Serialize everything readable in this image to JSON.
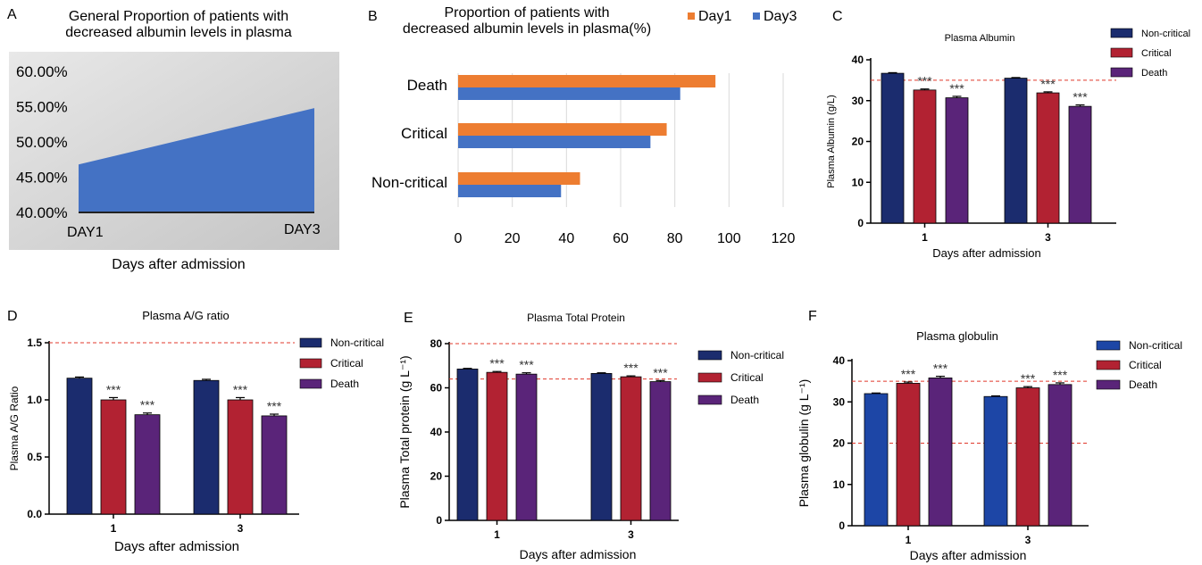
{
  "chart_data": [
    {
      "id": "A",
      "panel_label": "A",
      "type": "area",
      "title_line1": "General Proportion of patients with",
      "title_line2": "decreased albumin levels in plasma",
      "xlabel": "Days after admission",
      "categories": [
        "DAY1",
        "DAY3"
      ],
      "values": [
        0.468,
        0.548
      ],
      "ylim": [
        0.4,
        0.6
      ],
      "yticks": [
        "60.00%",
        "55.00%",
        "50.00%",
        "45.00%",
        "40.00%"
      ],
      "ytick_values": [
        0.6,
        0.55,
        0.5,
        0.45,
        0.4
      ],
      "colors": {
        "area": "#4472c4",
        "bg": "#d6d6d6"
      }
    },
    {
      "id": "B",
      "panel_label": "B",
      "type": "bar",
      "orientation": "horizontal",
      "title_line1": "Proportion of patients with",
      "title_line2": "decreased albumin levels in plasma(%)",
      "categories": [
        "Death",
        "Critical",
        "Non-critical"
      ],
      "series": [
        {
          "name": "Day1",
          "values": [
            95,
            77,
            45
          ],
          "color": "#ed7d31"
        },
        {
          "name": "Day3",
          "values": [
            82,
            71,
            38
          ],
          "color": "#4472c4"
        }
      ],
      "xlim": [
        0,
        120
      ],
      "xticks": [
        "0",
        "20",
        "40",
        "60",
        "80",
        "100",
        "120"
      ],
      "grid": true,
      "legend": "top-right"
    },
    {
      "id": "C",
      "panel_label": "C",
      "type": "bar",
      "title": "Plasma Albumin",
      "xlabel": "Days after admission",
      "ylabel": "Plasma Albumin (g/L)",
      "categories": [
        "1",
        "3"
      ],
      "series": [
        {
          "name": "Non-critical",
          "values": [
            36.7,
            35.5
          ],
          "err": [
            0.15,
            0.15
          ],
          "sig": [
            "",
            ""
          ],
          "color": "#1b2c6e"
        },
        {
          "name": "Critical",
          "values": [
            32.6,
            31.9
          ],
          "err": [
            0.25,
            0.25
          ],
          "sig": [
            "***",
            "***"
          ],
          "color": "#b22232"
        },
        {
          "name": "Death",
          "values": [
            30.7,
            28.6
          ],
          "err": [
            0.35,
            0.35
          ],
          "sig": [
            "***",
            "***"
          ],
          "color": "#5a2479"
        }
      ],
      "ylim": [
        0,
        40
      ],
      "yticks": [
        "0",
        "10",
        "20",
        "30",
        "40"
      ],
      "ytick_values": [
        0,
        10,
        20,
        30,
        40
      ],
      "ref_lines": [
        35
      ],
      "legend": "top-right"
    },
    {
      "id": "D",
      "panel_label": "D",
      "type": "bar",
      "title": "Plasma A/G ratio",
      "xlabel": "Days after admission",
      "ylabel": "Plasma A/G Ratio",
      "categories": [
        "1",
        "3"
      ],
      "series": [
        {
          "name": "Non-critical",
          "values": [
            1.19,
            1.17
          ],
          "err": [
            0.01,
            0.01
          ],
          "sig": [
            "",
            ""
          ],
          "color": "#1b2c6e"
        },
        {
          "name": "Critical",
          "values": [
            1.0,
            1.0
          ],
          "err": [
            0.02,
            0.02
          ],
          "sig": [
            "***",
            "***"
          ],
          "color": "#b22232"
        },
        {
          "name": "Death",
          "values": [
            0.87,
            0.86
          ],
          "err": [
            0.015,
            0.015
          ],
          "sig": [
            "***",
            "***"
          ],
          "color": "#5a2479"
        }
      ],
      "ylim": [
        0,
        1.5
      ],
      "yticks": [
        "0.0",
        "0.5",
        "1.0",
        "1.5"
      ],
      "ytick_values": [
        0,
        0.5,
        1.0,
        1.5
      ],
      "ref_lines": [
        1.5
      ],
      "legend": "top-right"
    },
    {
      "id": "E",
      "panel_label": "E",
      "type": "bar",
      "title": "Plasma Total Protein",
      "xlabel": "Days after admission",
      "ylabel": "Plasma Total protein (g L⁻¹)",
      "categories": [
        "1",
        "3"
      ],
      "series": [
        {
          "name": "Non-critical",
          "values": [
            68.5,
            66.5
          ],
          "err": [
            0.3,
            0.3
          ],
          "sig": [
            "",
            ""
          ],
          "color": "#1b2c6e"
        },
        {
          "name": "Critical",
          "values": [
            67,
            65
          ],
          "err": [
            0.4,
            0.4
          ],
          "sig": [
            "***",
            "***"
          ],
          "color": "#b22232"
        },
        {
          "name": "Death",
          "values": [
            66.2,
            62.8
          ],
          "err": [
            0.6,
            0.5
          ],
          "sig": [
            "***",
            "***"
          ],
          "color": "#5a2479"
        }
      ],
      "ylim": [
        0,
        80
      ],
      "yticks": [
        "0",
        "20",
        "40",
        "60",
        "80"
      ],
      "ytick_values": [
        0,
        20,
        40,
        60,
        80
      ],
      "ref_lines": [
        80,
        64
      ],
      "legend": "top-right"
    },
    {
      "id": "F",
      "panel_label": "F",
      "type": "bar",
      "title": "Plasma globulin",
      "xlabel": "Days after admission",
      "ylabel": "Plasma globulin (g L⁻¹)",
      "categories": [
        "1",
        "3"
      ],
      "series": [
        {
          "name": "Non-critical",
          "values": [
            32,
            31.3
          ],
          "err": [
            0.15,
            0.15
          ],
          "sig": [
            "",
            ""
          ],
          "color": "#1d46a6"
        },
        {
          "name": "Critical",
          "values": [
            34.5,
            33.4
          ],
          "err": [
            0.3,
            0.3
          ],
          "sig": [
            "***",
            "***"
          ],
          "color": "#b22232"
        },
        {
          "name": "Death",
          "values": [
            35.8,
            34.2
          ],
          "err": [
            0.4,
            0.4
          ],
          "sig": [
            "***",
            "***"
          ],
          "color": "#5a2479"
        }
      ],
      "ylim": [
        0,
        40
      ],
      "yticks": [
        "0",
        "10",
        "20",
        "30",
        "40"
      ],
      "ytick_values": [
        0,
        10,
        20,
        30,
        40
      ],
      "ref_lines": [
        35,
        20
      ],
      "legend": "top-right"
    }
  ]
}
